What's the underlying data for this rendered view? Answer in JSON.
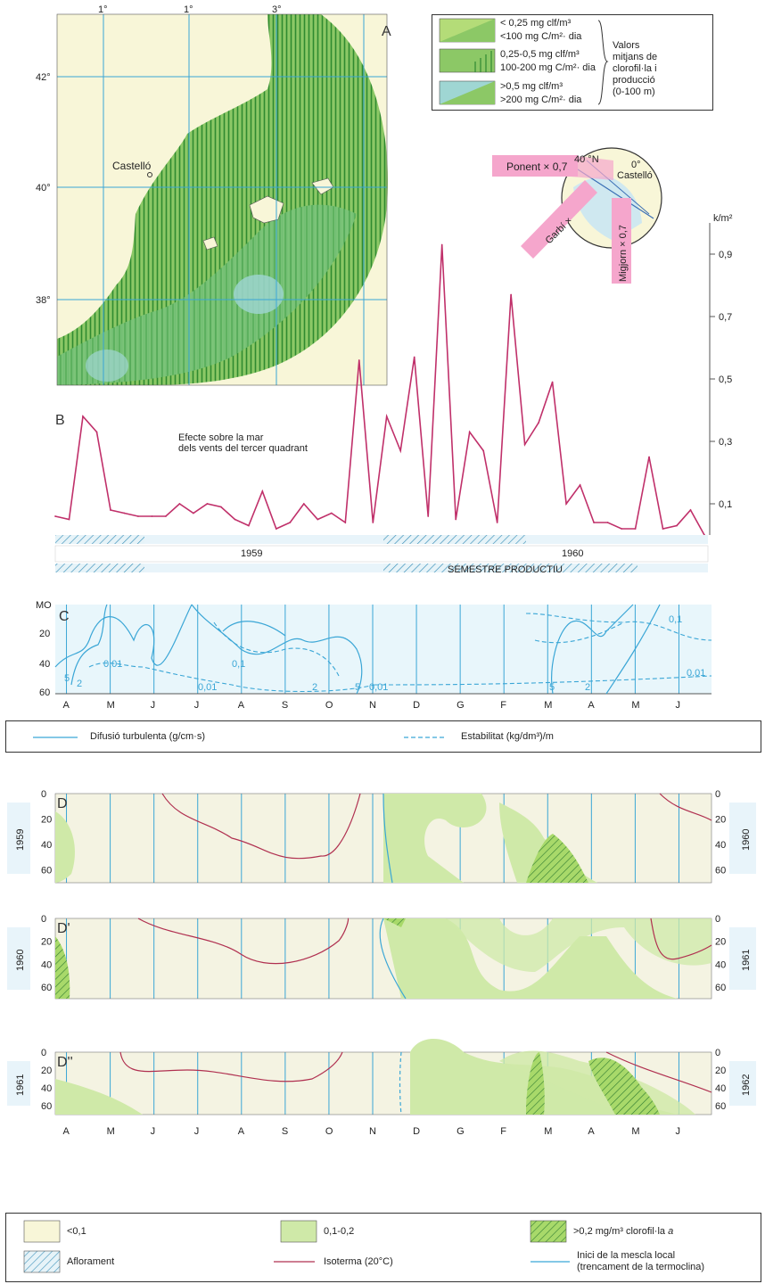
{
  "panelA": {
    "label": "A",
    "lon_labels": [
      "1°",
      "1°",
      "3°"
    ],
    "lat_labels": [
      "42°",
      "40°",
      "38°"
    ],
    "city": "Castelló",
    "legend": {
      "low": [
        "< 0,25 mg clf/m³",
        "<100 mg C/m²· dia"
      ],
      "mid": [
        "0,25-0,5 mg clf/m³",
        "100-200 mg C/m²· dia"
      ],
      "high": [
        ">0,5 mg clf/m³",
        ">200 mg C/m²· dia"
      ],
      "note": [
        "Valors",
        "mitjans de",
        "clorofil·la i",
        "producció",
        "(0-100 m)"
      ]
    },
    "inset": {
      "winds": [
        "Ponent × 0,7",
        "Garbí ×",
        "Migjorn × 0,7"
      ],
      "labels": [
        "40 °N",
        "0°",
        "Castelló"
      ]
    }
  },
  "panelB": {
    "label": "B",
    "unit": "k/m²",
    "annotation": [
      "Efecte sobre la mar",
      "dels vents del tercer quadrant"
    ],
    "yticks": [
      "0,9",
      "0,7",
      "0,5",
      "0,3",
      "0,1"
    ],
    "years": [
      "1959",
      "1960"
    ],
    "semester": "SEMESTRE PRODUCTIU"
  },
  "chart_data": {
    "type": "line",
    "title": "",
    "ylabel": "k/m²",
    "ylim": [
      0,
      1.0
    ],
    "values": [
      0.06,
      0.05,
      0.38,
      0.33,
      0.08,
      0.07,
      0.06,
      0.06,
      0.06,
      0.1,
      0.07,
      0.1,
      0.09,
      0.05,
      0.03,
      0.14,
      0.02,
      0.04,
      0.1,
      0.05,
      0.07,
      0.04,
      0.56,
      0.04,
      0.38,
      0.27,
      0.57,
      0.06,
      0.93,
      0.05,
      0.33,
      0.27,
      0.04,
      0.77,
      0.29,
      0.36,
      0.49,
      0.1,
      0.16,
      0.04,
      0.04,
      0.02,
      0.02,
      0.25,
      0.02,
      0.03,
      0.08,
      0.0
    ]
  },
  "panelC": {
    "label": "C",
    "ylabels": [
      "MO",
      "20",
      "40",
      "60"
    ],
    "months": [
      "A",
      "M",
      "J",
      "J",
      "A",
      "S",
      "O",
      "N",
      "D",
      "G",
      "F",
      "M",
      "A",
      "M",
      "J"
    ],
    "iso_labels": [
      "5",
      "2",
      "0,01",
      "0,01",
      "0,1",
      "2",
      "5",
      "0,01",
      "5",
      "2",
      "0,1",
      "0,01"
    ],
    "legend": [
      "Difusió turbulenta (g/cm·s)",
      "Estabilitat (kg/dm³)/m"
    ]
  },
  "panelD": {
    "rows": [
      {
        "label": "D",
        "left_year": "1959",
        "right_year": "1960"
      },
      {
        "label": "D'",
        "left_year": "1960",
        "right_year": "1961"
      },
      {
        "label": "D''",
        "left_year": "1961",
        "right_year": "1962"
      }
    ],
    "ylabels": [
      "0",
      "20",
      "40",
      "60"
    ],
    "months": [
      "A",
      "M",
      "J",
      "J",
      "A",
      "S",
      "O",
      "N",
      "D",
      "G",
      "F",
      "M",
      "A",
      "M",
      "J"
    ]
  },
  "legendD": {
    "lt01": "<0,1",
    "mid": "0,1-0,2",
    "high_prefix": ">0,2 mg/m³ clorofil·la ",
    "high_italic": "a",
    "aflorament": "Aflorament",
    "isoterma": "Isoterma (20°C)",
    "mescla": [
      "Inici de la mescla local",
      "(trencament de la termoclina)"
    ]
  },
  "colors": {
    "land": "#f8f6d8",
    "sea_low": "#a8d36a",
    "sea_mid": "#7fc46a",
    "sea_high": "#9fd6d3",
    "hatch": "#2f8a30",
    "grid": "#3aa6d6",
    "series": "#c0306a",
    "isotherm": "#b03050",
    "pink": "#f5a6cc",
    "panel_bg": "#f4f3e2"
  }
}
